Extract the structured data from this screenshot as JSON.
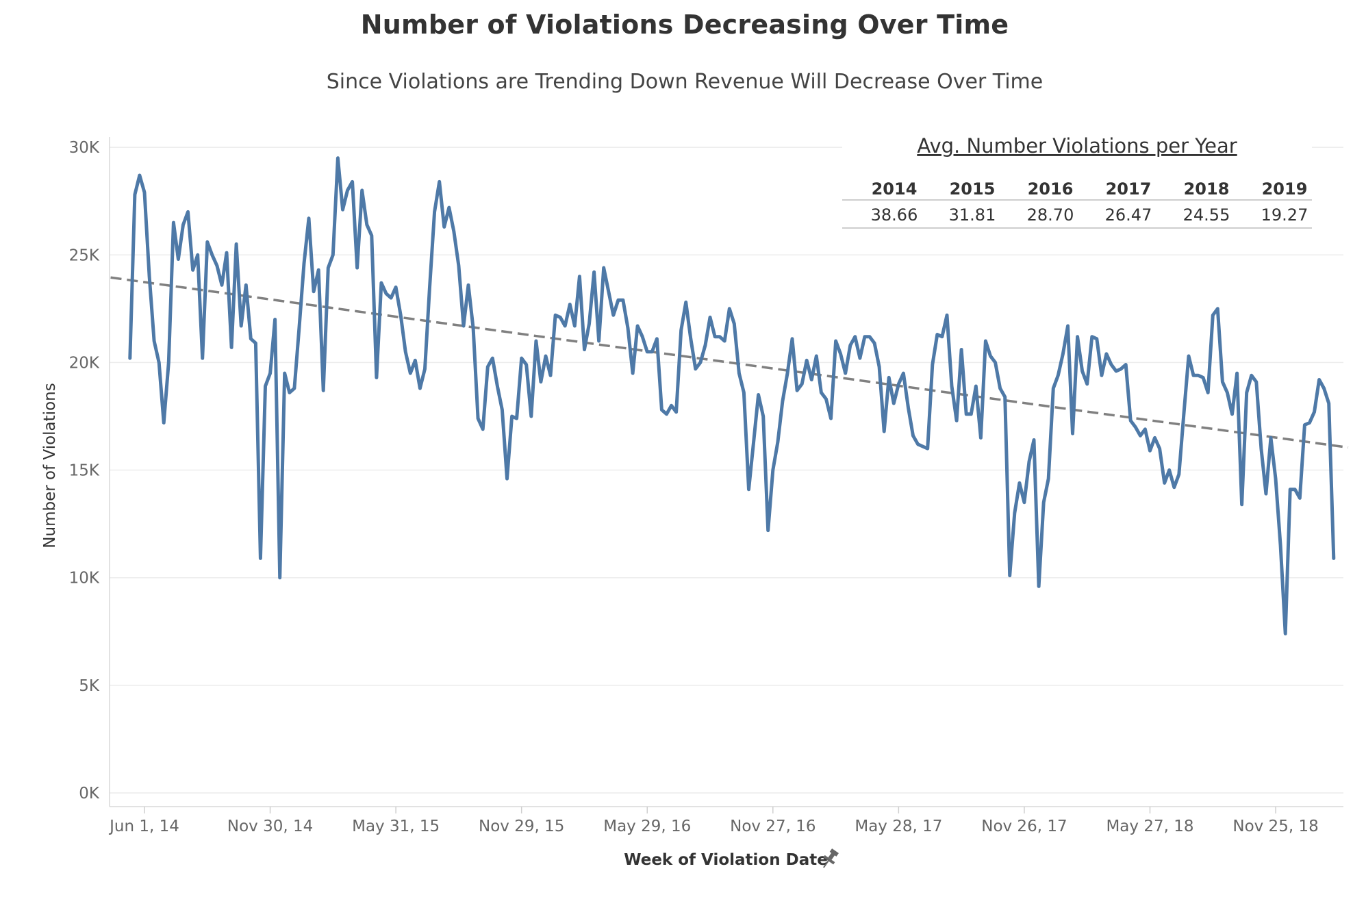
{
  "chart_data": {
    "type": "line",
    "title": "Number of Violations Decreasing Over Time",
    "subtitle": "Since Violations are Trending Down Revenue Will Decrease Over Time",
    "xlabel": "Week of Violation Date",
    "ylabel": "Number of Violations",
    "ylim": [
      0,
      30000
    ],
    "y_ticks": [
      {
        "value": 0,
        "label": "0K"
      },
      {
        "value": 5000,
        "label": "5K"
      },
      {
        "value": 10000,
        "label": "10K"
      },
      {
        "value": 15000,
        "label": "15K"
      },
      {
        "value": 20000,
        "label": "20K"
      },
      {
        "value": 25000,
        "label": "25K"
      },
      {
        "value": 30000,
        "label": "30K"
      }
    ],
    "x_ticks": [
      {
        "week": 0,
        "label": "Jun 1, 14"
      },
      {
        "week": 26,
        "label": "Nov 30, 14"
      },
      {
        "week": 52,
        "label": "May 31, 15"
      },
      {
        "week": 78,
        "label": "Nov 29, 15"
      },
      {
        "week": 104,
        "label": "May 29, 16"
      },
      {
        "week": 130,
        "label": "Nov 27, 16"
      },
      {
        "week": 156,
        "label": "May 28, 17"
      },
      {
        "week": 182,
        "label": "Nov 26, 17"
      },
      {
        "week": 208,
        "label": "May 27, 18"
      },
      {
        "week": 234,
        "label": "Nov 25, 18"
      }
    ],
    "x_unit": "weeks since Jun 1, 2014",
    "series": [
      {
        "name": "Number of Violations",
        "color": "#4e79a7",
        "points": [
          [
            -3,
            20200
          ],
          [
            -2,
            27800
          ],
          [
            -1,
            28700
          ],
          [
            0,
            27900
          ],
          [
            1,
            24000
          ],
          [
            2,
            21000
          ],
          [
            3,
            20000
          ],
          [
            4,
            17200
          ],
          [
            5,
            20000
          ],
          [
            6,
            26500
          ],
          [
            7,
            24800
          ],
          [
            8,
            26400
          ],
          [
            9,
            27000
          ],
          [
            10,
            24300
          ],
          [
            11,
            25000
          ],
          [
            12,
            20200
          ],
          [
            13,
            25600
          ],
          [
            14,
            25000
          ],
          [
            15,
            24500
          ],
          [
            16,
            23600
          ],
          [
            17,
            25100
          ],
          [
            18,
            20700
          ],
          [
            19,
            25500
          ],
          [
            20,
            21700
          ],
          [
            21,
            23600
          ],
          [
            22,
            21100
          ],
          [
            23,
            20900
          ],
          [
            24,
            10900
          ],
          [
            25,
            18900
          ],
          [
            26,
            19500
          ],
          [
            27,
            22000
          ],
          [
            28,
            10000
          ],
          [
            29,
            19500
          ],
          [
            30,
            18600
          ],
          [
            31,
            18800
          ],
          [
            32,
            21600
          ],
          [
            33,
            24600
          ],
          [
            34,
            26700
          ],
          [
            35,
            23300
          ],
          [
            36,
            24300
          ],
          [
            37,
            18700
          ],
          [
            38,
            24400
          ],
          [
            39,
            25000
          ],
          [
            40,
            29500
          ],
          [
            41,
            27100
          ],
          [
            42,
            28000
          ],
          [
            43,
            28400
          ],
          [
            44,
            24400
          ],
          [
            45,
            28000
          ],
          [
            46,
            26400
          ],
          [
            47,
            25900
          ],
          [
            48,
            19300
          ],
          [
            49,
            23700
          ],
          [
            50,
            23200
          ],
          [
            51,
            23000
          ],
          [
            52,
            23500
          ],
          [
            53,
            22200
          ],
          [
            54,
            20500
          ],
          [
            55,
            19500
          ],
          [
            56,
            20100
          ],
          [
            57,
            18800
          ],
          [
            58,
            19700
          ],
          [
            59,
            23500
          ],
          [
            60,
            27000
          ],
          [
            61,
            28400
          ],
          [
            62,
            26300
          ],
          [
            63,
            27200
          ],
          [
            64,
            26100
          ],
          [
            65,
            24500
          ],
          [
            66,
            21700
          ],
          [
            67,
            23600
          ],
          [
            68,
            21600
          ],
          [
            69,
            17400
          ],
          [
            70,
            16900
          ],
          [
            71,
            19800
          ],
          [
            72,
            20200
          ],
          [
            73,
            18900
          ],
          [
            74,
            17800
          ],
          [
            75,
            14600
          ],
          [
            76,
            17500
          ],
          [
            77,
            17400
          ],
          [
            78,
            20200
          ],
          [
            79,
            19900
          ],
          [
            80,
            17500
          ],
          [
            81,
            21000
          ],
          [
            82,
            19100
          ],
          [
            83,
            20300
          ],
          [
            84,
            19400
          ],
          [
            85,
            22200
          ],
          [
            86,
            22100
          ],
          [
            87,
            21700
          ],
          [
            88,
            22700
          ],
          [
            89,
            21700
          ],
          [
            90,
            24000
          ],
          [
            91,
            20600
          ],
          [
            92,
            21800
          ],
          [
            93,
            24200
          ],
          [
            94,
            21000
          ],
          [
            95,
            24400
          ],
          [
            96,
            23300
          ],
          [
            97,
            22200
          ],
          [
            98,
            22900
          ],
          [
            99,
            22900
          ],
          [
            100,
            21600
          ],
          [
            101,
            19500
          ],
          [
            102,
            21700
          ],
          [
            103,
            21200
          ],
          [
            104,
            20500
          ],
          [
            105,
            20500
          ],
          [
            106,
            21100
          ],
          [
            107,
            17800
          ],
          [
            108,
            17600
          ],
          [
            109,
            18000
          ],
          [
            110,
            17700
          ],
          [
            111,
            21500
          ],
          [
            112,
            22800
          ],
          [
            113,
            21100
          ],
          [
            114,
            19700
          ],
          [
            115,
            20000
          ],
          [
            116,
            20800
          ],
          [
            117,
            22100
          ],
          [
            118,
            21200
          ],
          [
            119,
            21200
          ],
          [
            120,
            21000
          ],
          [
            121,
            22500
          ],
          [
            122,
            21800
          ],
          [
            123,
            19500
          ],
          [
            124,
            18600
          ],
          [
            125,
            14100
          ],
          [
            126,
            16300
          ],
          [
            127,
            18500
          ],
          [
            128,
            17500
          ],
          [
            129,
            12200
          ],
          [
            130,
            15000
          ],
          [
            131,
            16300
          ],
          [
            132,
            18200
          ],
          [
            133,
            19500
          ],
          [
            134,
            21100
          ],
          [
            135,
            18700
          ],
          [
            136,
            19000
          ],
          [
            137,
            20100
          ],
          [
            138,
            19200
          ],
          [
            139,
            20300
          ],
          [
            140,
            18600
          ],
          [
            141,
            18300
          ],
          [
            142,
            17400
          ],
          [
            143,
            21000
          ],
          [
            144,
            20400
          ],
          [
            145,
            19500
          ],
          [
            146,
            20800
          ],
          [
            147,
            21200
          ],
          [
            148,
            20200
          ],
          [
            149,
            21200
          ],
          [
            150,
            21200
          ],
          [
            151,
            20900
          ],
          [
            152,
            19800
          ],
          [
            153,
            16800
          ],
          [
            154,
            19300
          ],
          [
            155,
            18100
          ],
          [
            156,
            19000
          ],
          [
            157,
            19500
          ],
          [
            158,
            17900
          ],
          [
            159,
            16600
          ],
          [
            160,
            16200
          ],
          [
            161,
            16100
          ],
          [
            162,
            16000
          ],
          [
            163,
            19900
          ],
          [
            164,
            21300
          ],
          [
            165,
            21200
          ],
          [
            166,
            22200
          ],
          [
            167,
            18900
          ],
          [
            168,
            17300
          ],
          [
            169,
            20600
          ],
          [
            170,
            17600
          ],
          [
            171,
            17600
          ],
          [
            172,
            18900
          ],
          [
            173,
            16500
          ],
          [
            174,
            21000
          ],
          [
            175,
            20300
          ],
          [
            176,
            20000
          ],
          [
            177,
            18800
          ],
          [
            178,
            18400
          ],
          [
            179,
            10100
          ],
          [
            180,
            13000
          ],
          [
            181,
            14400
          ],
          [
            182,
            13500
          ],
          [
            183,
            15400
          ],
          [
            184,
            16400
          ],
          [
            185,
            9600
          ],
          [
            186,
            13500
          ],
          [
            187,
            14600
          ],
          [
            188,
            18800
          ],
          [
            189,
            19400
          ],
          [
            190,
            20400
          ],
          [
            191,
            21700
          ],
          [
            192,
            16700
          ],
          [
            193,
            21200
          ],
          [
            194,
            19600
          ],
          [
            195,
            19000
          ],
          [
            196,
            21200
          ],
          [
            197,
            21100
          ],
          [
            198,
            19400
          ],
          [
            199,
            20400
          ],
          [
            200,
            19900
          ],
          [
            201,
            19600
          ],
          [
            202,
            19700
          ],
          [
            203,
            19900
          ],
          [
            204,
            17300
          ],
          [
            205,
            17000
          ],
          [
            206,
            16600
          ],
          [
            207,
            16900
          ],
          [
            208,
            15900
          ],
          [
            209,
            16500
          ],
          [
            210,
            16000
          ],
          [
            211,
            14400
          ],
          [
            212,
            15000
          ],
          [
            213,
            14200
          ],
          [
            214,
            14800
          ],
          [
            215,
            17600
          ],
          [
            216,
            20300
          ],
          [
            217,
            19400
          ],
          [
            218,
            19400
          ],
          [
            219,
            19300
          ],
          [
            220,
            18600
          ],
          [
            221,
            22200
          ],
          [
            222,
            22500
          ],
          [
            223,
            19100
          ],
          [
            224,
            18600
          ],
          [
            225,
            17600
          ],
          [
            226,
            19500
          ],
          [
            227,
            13400
          ],
          [
            228,
            18600
          ],
          [
            229,
            19400
          ],
          [
            230,
            19100
          ],
          [
            231,
            16000
          ],
          [
            232,
            13900
          ],
          [
            233,
            16500
          ],
          [
            234,
            14600
          ],
          [
            235,
            11500
          ],
          [
            236,
            7400
          ],
          [
            237,
            14100
          ],
          [
            238,
            14100
          ],
          [
            239,
            13700
          ],
          [
            240,
            17100
          ],
          [
            241,
            17200
          ],
          [
            242,
            17700
          ],
          [
            243,
            19200
          ],
          [
            244,
            18800
          ],
          [
            245,
            18100
          ],
          [
            246,
            10900
          ]
        ]
      }
    ],
    "trend_line": {
      "name": "Trend",
      "start": [
        -7,
        23950
      ],
      "end": [
        249,
        16050
      ],
      "style": "dashed",
      "color": "#808080"
    }
  },
  "avg_table": {
    "title": "Avg. Number Violations per Year",
    "years": [
      "2014",
      "2015",
      "2016",
      "2017",
      "2018",
      "2019"
    ],
    "values": [
      "38.66",
      "31.81",
      "28.70",
      "26.47",
      "24.55",
      "19.27"
    ]
  },
  "colors": {
    "line": "#4e79a7",
    "trend": "#808080",
    "grid": "#e8e8e8",
    "axis_text": "#666666"
  },
  "icons": {
    "x_axis_pin": "pin-icon"
  }
}
